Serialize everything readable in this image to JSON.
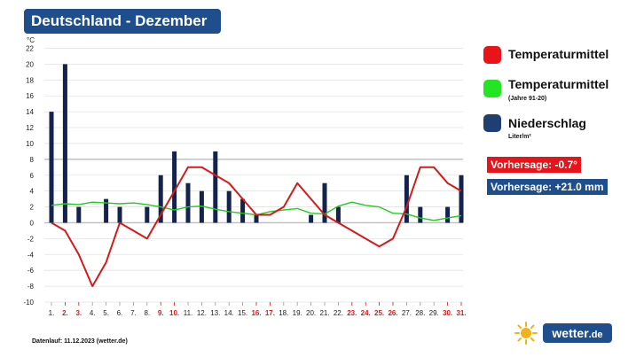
{
  "title": "Deutschland - Dezember",
  "chart_data": {
    "type": "bar+line",
    "unit_label": "°C",
    "ylim": [
      -10,
      22
    ],
    "y_ticks": [
      -10,
      -8,
      -6,
      -4,
      -2,
      0,
      2,
      4,
      6,
      8,
      10,
      12,
      14,
      16,
      18,
      20,
      22
    ],
    "x_labels": [
      "1.",
      "2.",
      "3.",
      "4.",
      "5.",
      "6.",
      "7.",
      "8.",
      "9.",
      "10.",
      "11.",
      "12.",
      "13.",
      "14.",
      "15.",
      "16.",
      "17.",
      "18.",
      "19.",
      "20.",
      "21.",
      "22.",
      "23.",
      "24.",
      "25.",
      "26.",
      "27.",
      "28.",
      "29.",
      "30.",
      "31."
    ],
    "highlight_days": [
      2,
      3,
      9,
      10,
      16,
      17,
      23,
      24,
      25,
      26,
      30,
      31
    ],
    "series": [
      {
        "name": "Niederschlag",
        "type": "bar",
        "color": "#13234d",
        "values": [
          14,
          20,
          2,
          0,
          3,
          2,
          0,
          2,
          6,
          9,
          5,
          4,
          9,
          4,
          3,
          1,
          0,
          0,
          0,
          1,
          5,
          2,
          0,
          0,
          0,
          0,
          6,
          2,
          0,
          2,
          6
        ]
      },
      {
        "name": "Temperaturmittel",
        "type": "line",
        "color": "#d61a1a",
        "values": [
          0,
          -1,
          -4,
          -8,
          -5,
          0,
          -1,
          -2,
          1,
          4,
          7,
          7,
          6,
          5,
          3,
          1,
          1,
          2,
          5,
          3,
          1,
          0,
          -1,
          -2,
          -3,
          -2,
          2,
          7,
          7,
          5,
          4
        ]
      },
      {
        "name": "Temperaturmittel (Jahre 91-20)",
        "type": "line",
        "color": "#1fce1f",
        "values": [
          2.2,
          2.4,
          2.3,
          2.6,
          2.5,
          2.4,
          2.5,
          2.3,
          2.0,
          1.6,
          2.0,
          2.1,
          1.7,
          1.4,
          1.2,
          1.0,
          1.4,
          1.6,
          1.8,
          1.2,
          1.1,
          2.1,
          2.6,
          2.2,
          2.0,
          1.2,
          1.1,
          0.6,
          0.3,
          0.6,
          0.9
        ]
      }
    ]
  },
  "legend": {
    "temp": {
      "label": "Temperaturmittel",
      "color": "#e8141a"
    },
    "normal": {
      "label": "Temperaturmittel",
      "sub": "(Jahre 91-20)",
      "color": "#22e622"
    },
    "precip": {
      "label": "Niederschlag",
      "sub": "Liter/m²",
      "color": "#1f3f73"
    }
  },
  "forecasts": {
    "temp": {
      "text": "Vorhersage: -0.7°",
      "color": "#e8141a"
    },
    "precip": {
      "text": "Vorhersage: +21.0 mm",
      "color": "#1f4e8c"
    }
  },
  "footer": "Datenlauf: 11.12.2023 (wetter.de)",
  "logo": {
    "text": "wetter",
    "suffix": ".de"
  }
}
